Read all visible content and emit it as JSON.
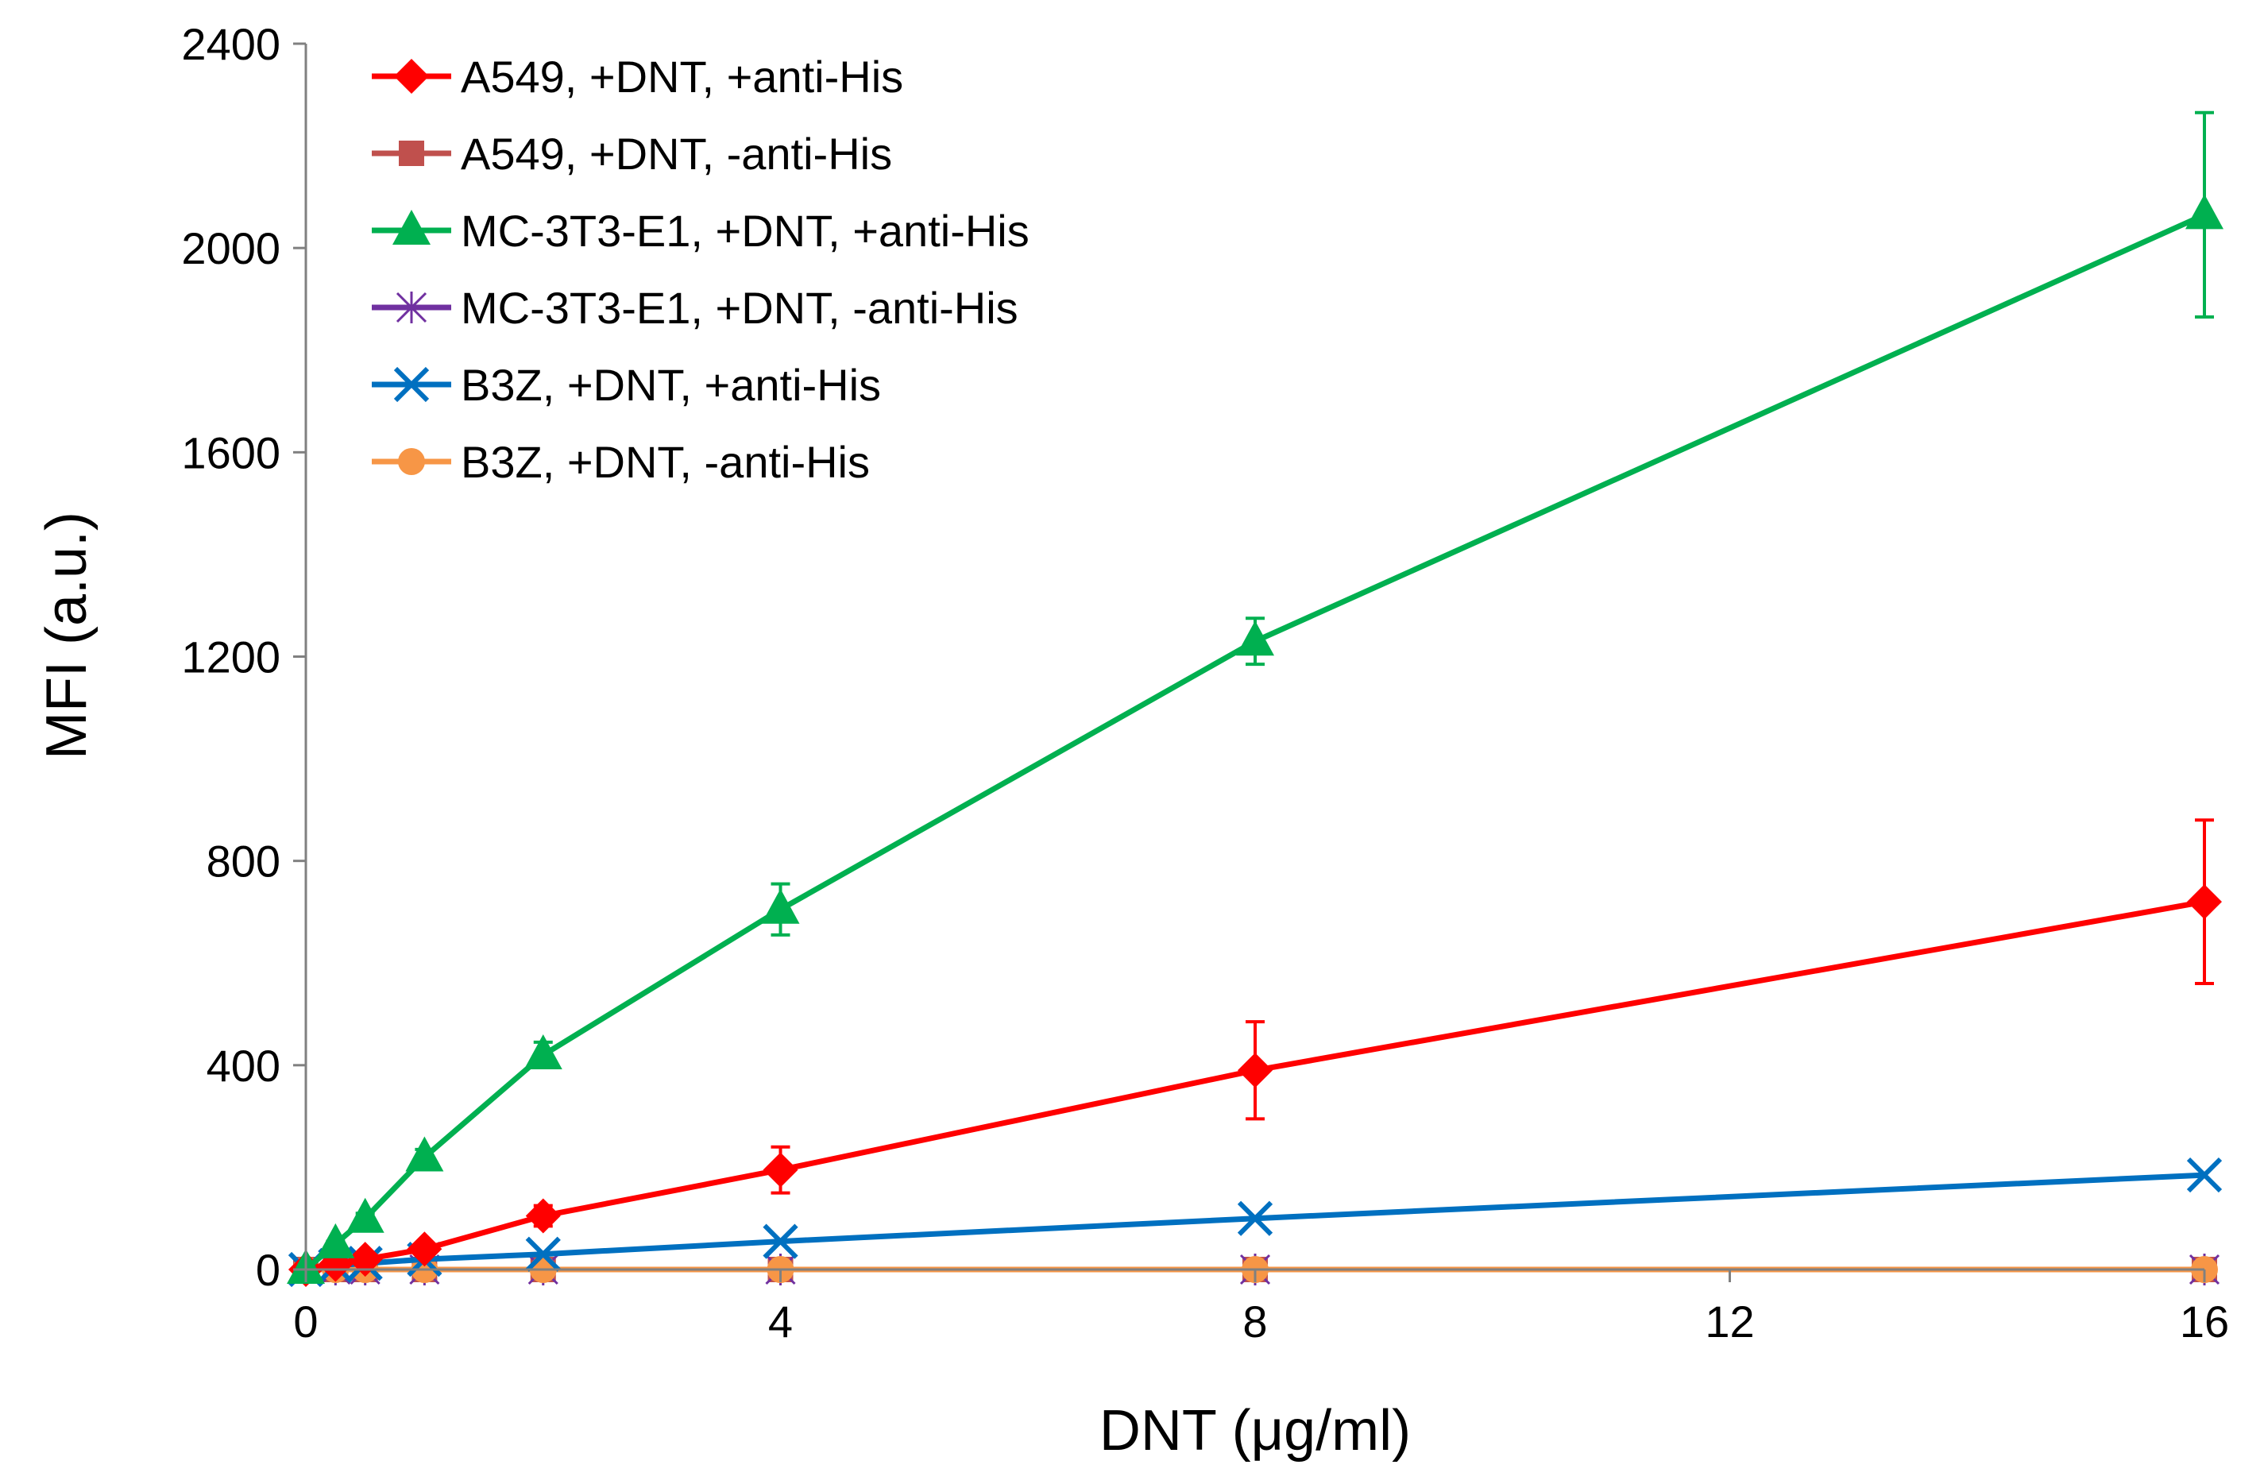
{
  "chart_data": {
    "type": "line",
    "title": "",
    "xlabel": "DNT (μg/ml)",
    "ylabel": "MFI (a.u.)",
    "xlim": [
      0,
      16
    ],
    "ylim": [
      0,
      2400
    ],
    "xticks": [
      0,
      4,
      8,
      12,
      16
    ],
    "yticks": [
      0,
      400,
      800,
      1200,
      1600,
      2000,
      2400
    ],
    "legend_position": "top-left",
    "x": [
      0,
      0.25,
      0.5,
      1,
      2,
      4,
      8,
      16
    ],
    "series": [
      {
        "name": "A549, +DNT, +anti-His",
        "color": "#ff0000",
        "marker": "diamond",
        "values": [
          0,
          10,
          20,
          40,
          105,
          195,
          390,
          720
        ],
        "errors": [
          0,
          5,
          8,
          10,
          20,
          45,
          95,
          160
        ]
      },
      {
        "name": "A549, +DNT, -anti-His",
        "color": "#c0504d",
        "marker": "square",
        "values": [
          0,
          0,
          0,
          0,
          0,
          0,
          0,
          0
        ],
        "errors": [
          0,
          0,
          0,
          0,
          0,
          0,
          0,
          0
        ]
      },
      {
        "name": "MC-3T3-E1, +DNT, +anti-His",
        "color": "#00b050",
        "marker": "triangle",
        "values": [
          0,
          50,
          100,
          220,
          420,
          705,
          1230,
          2065
        ],
        "errors": [
          0,
          5,
          10,
          15,
          25,
          50,
          45,
          200
        ]
      },
      {
        "name": "MC-3T3-E1, +DNT, -anti-His",
        "color": "#7030a0",
        "marker": "cross",
        "values": [
          0,
          0,
          0,
          0,
          0,
          0,
          0,
          0
        ],
        "errors": [
          0,
          0,
          0,
          0,
          0,
          0,
          0,
          0
        ]
      },
      {
        "name": "B3Z, +DNT, +anti-His",
        "color": "#0070c0",
        "marker": "x",
        "values": [
          0,
          8,
          12,
          20,
          30,
          55,
          100,
          185
        ],
        "errors": [
          0,
          0,
          0,
          0,
          0,
          0,
          0,
          0
        ]
      },
      {
        "name": "B3Z, +DNT, -anti-His",
        "color": "#f79646",
        "marker": "circle",
        "values": [
          0,
          0,
          0,
          0,
          0,
          0,
          0,
          0
        ],
        "errors": [
          0,
          0,
          0,
          0,
          0,
          0,
          0,
          0
        ]
      }
    ]
  }
}
